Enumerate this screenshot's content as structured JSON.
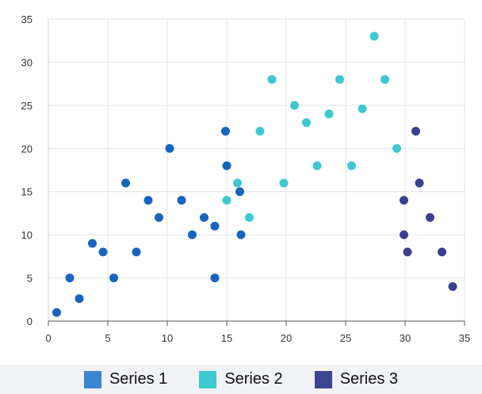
{
  "chart_data": {
    "type": "scatter",
    "title": "",
    "xlabel": "",
    "ylabel": "",
    "xlim": [
      0,
      35
    ],
    "ylim": [
      0,
      35
    ],
    "x_ticks": [
      "0",
      "5",
      "10",
      "15",
      "20",
      "25",
      "30",
      "35"
    ],
    "y_ticks": [
      "0",
      "5",
      "10",
      "15",
      "20",
      "25",
      "30",
      "35"
    ],
    "grid": true,
    "legend_position": "bottom",
    "series": [
      {
        "name": "Series 1",
        "color": "#1565c0",
        "points": [
          [
            0.7,
            1
          ],
          [
            1.8,
            5
          ],
          [
            2.6,
            2.6
          ],
          [
            3.7,
            9
          ],
          [
            4.6,
            8
          ],
          [
            5.5,
            5
          ],
          [
            6.5,
            16
          ],
          [
            7.4,
            8
          ],
          [
            8.4,
            14
          ],
          [
            9.3,
            12
          ],
          [
            10.2,
            20
          ],
          [
            11.2,
            14
          ],
          [
            12.1,
            10
          ],
          [
            13.1,
            12
          ],
          [
            14.0,
            5
          ],
          [
            14.0,
            11
          ],
          [
            14.9,
            22
          ],
          [
            15.0,
            18
          ],
          [
            16.1,
            15
          ],
          [
            16.2,
            10
          ]
        ]
      },
      {
        "name": "Series 2",
        "color": "#3ec8d1",
        "points": [
          [
            15.0,
            14
          ],
          [
            15.9,
            16
          ],
          [
            16.9,
            12
          ],
          [
            17.8,
            22
          ],
          [
            18.8,
            28
          ],
          [
            19.8,
            16
          ],
          [
            20.7,
            25
          ],
          [
            21.7,
            23
          ],
          [
            22.6,
            18
          ],
          [
            23.6,
            24
          ],
          [
            24.5,
            28
          ],
          [
            25.5,
            18
          ],
          [
            26.4,
            24.6
          ],
          [
            27.4,
            33
          ],
          [
            28.3,
            28
          ],
          [
            29.3,
            20
          ]
        ]
      },
      {
        "name": "Series 3",
        "color": "#3b3f8f",
        "points": [
          [
            29.9,
            14
          ],
          [
            29.9,
            10
          ],
          [
            30.2,
            8
          ],
          [
            30.9,
            22
          ],
          [
            31.2,
            16
          ],
          [
            32.1,
            12
          ],
          [
            33.1,
            8
          ],
          [
            34.0,
            4
          ]
        ]
      }
    ]
  },
  "legend": {
    "items": [
      {
        "label": "Series 1",
        "color": "#3a86d1"
      },
      {
        "label": "Series 2",
        "color": "#3ec8d1"
      },
      {
        "label": "Series 3",
        "color": "#3b4590"
      }
    ]
  }
}
